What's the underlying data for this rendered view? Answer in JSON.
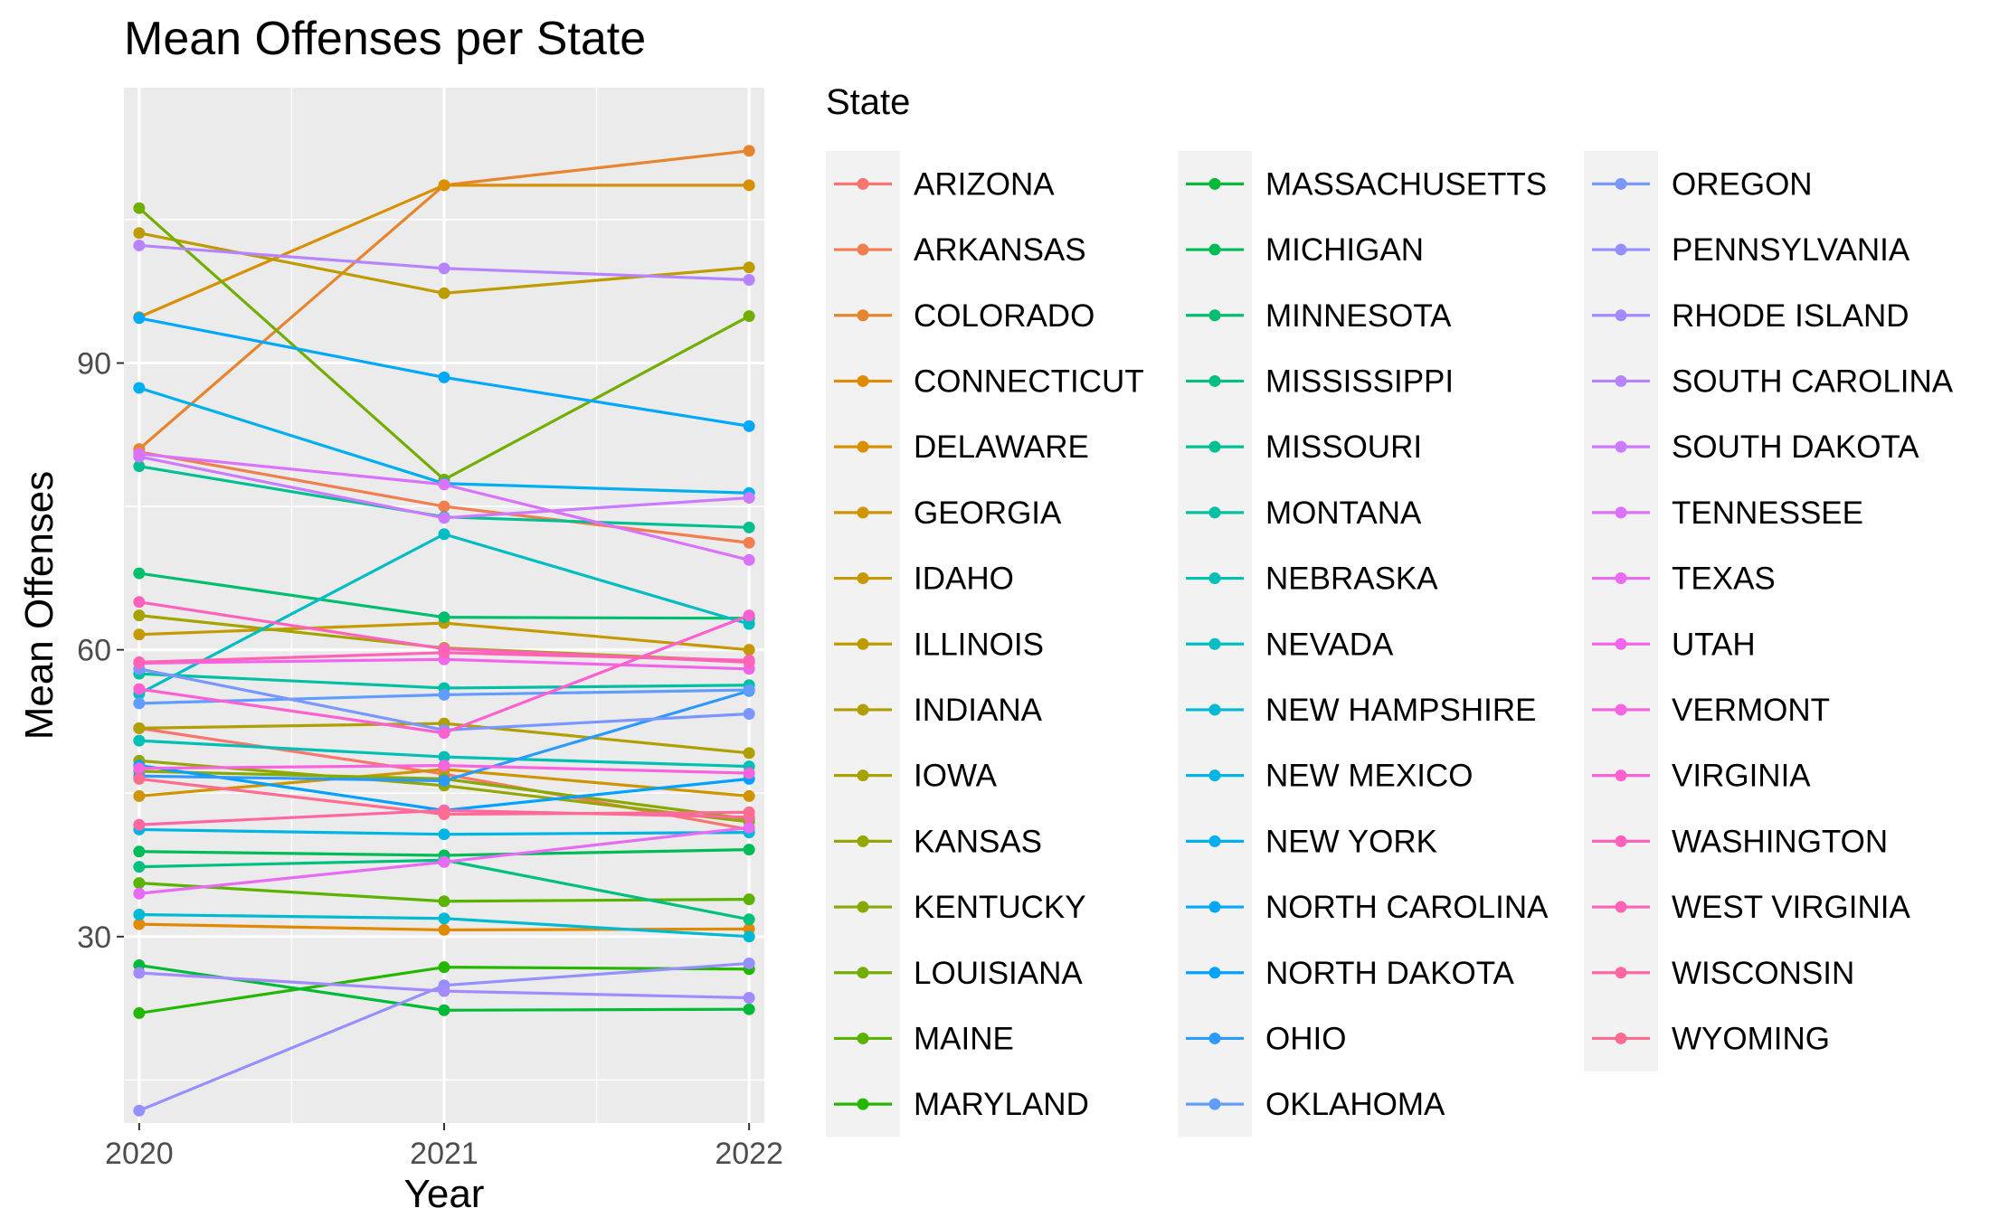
{
  "chart_data": {
    "type": "line",
    "title": "Mean Offenses per State",
    "xlabel": "Year",
    "ylabel": "Mean Offenses",
    "x": [
      2020,
      2021,
      2022
    ],
    "x_tick_labels": [
      "2020",
      "2021",
      "2022"
    ],
    "y_ticks": [
      30,
      60,
      90
    ],
    "y_tick_labels": [
      "30",
      "60",
      "90"
    ],
    "xlim": [
      2019.95,
      2022.05
    ],
    "ylim": [
      10.5,
      118.8
    ],
    "grid": true,
    "legend": {
      "title": "State",
      "position": "right",
      "columns": 3
    },
    "series": [
      {
        "name": "ARIZONA",
        "color": "#F8766D",
        "values": [
          51.8,
          47.0,
          41.2
        ]
      },
      {
        "name": "ARKANSAS",
        "color": "#F07E4E",
        "values": [
          80.7,
          75.0,
          71.2
        ]
      },
      {
        "name": "COLORADO",
        "color": "#E7852E",
        "values": [
          81.0,
          108.6,
          112.2
        ]
      },
      {
        "name": "CONNECTICUT",
        "color": "#E18A00",
        "values": [
          31.3,
          30.7,
          30.8
        ]
      },
      {
        "name": "DELAWARE",
        "color": "#D89000",
        "values": [
          94.8,
          108.6,
          108.6
        ]
      },
      {
        "name": "GEORGIA",
        "color": "#CF9400",
        "values": [
          44.7,
          47.5,
          44.7
        ]
      },
      {
        "name": "IDAHO",
        "color": "#C49A00",
        "values": [
          61.6,
          62.8,
          60.0
        ]
      },
      {
        "name": "ILLINOIS",
        "color": "#BE9C00",
        "values": [
          103.6,
          97.3,
          100.0
        ]
      },
      {
        "name": "INDIANA",
        "color": "#B09F00",
        "values": [
          51.8,
          52.3,
          49.2
        ]
      },
      {
        "name": "IOWA",
        "color": "#A5A300",
        "values": [
          63.6,
          60.2,
          58.8
        ]
      },
      {
        "name": "KANSAS",
        "color": "#96A600",
        "values": [
          48.4,
          45.8,
          42.0
        ]
      },
      {
        "name": "KENTUCKY",
        "color": "#87AA00",
        "values": [
          47.3,
          46.5,
          42.3
        ]
      },
      {
        "name": "LOUISIANA",
        "color": "#72AE00",
        "values": [
          106.2,
          77.8,
          94.9
        ]
      },
      {
        "name": "MAINE",
        "color": "#5BB300",
        "values": [
          35.6,
          33.7,
          33.9
        ]
      },
      {
        "name": "MARYLAND",
        "color": "#24B700",
        "values": [
          22.0,
          26.8,
          26.6
        ]
      },
      {
        "name": "MASSACHUSETTS",
        "color": "#00BA38",
        "values": [
          27.0,
          22.3,
          22.4
        ]
      },
      {
        "name": "MICHIGAN",
        "color": "#00BC56",
        "values": [
          38.9,
          38.5,
          39.1
        ]
      },
      {
        "name": "MINNESOTA",
        "color": "#00BE6C",
        "values": [
          68.0,
          63.4,
          63.3
        ]
      },
      {
        "name": "MISSISSIPPI",
        "color": "#00C07F",
        "values": [
          37.3,
          38.0,
          31.8
        ]
      },
      {
        "name": "MISSOURI",
        "color": "#00C091",
        "values": [
          79.2,
          73.9,
          72.8
        ]
      },
      {
        "name": "MONTANA",
        "color": "#00C0A3",
        "values": [
          57.5,
          56.0,
          56.3
        ]
      },
      {
        "name": "NEBRASKA",
        "color": "#00BFB4",
        "values": [
          50.5,
          48.8,
          47.8
        ]
      },
      {
        "name": "NEVADA",
        "color": "#00BDC4",
        "values": [
          55.4,
          72.1,
          62.7
        ]
      },
      {
        "name": "NEW HAMPSHIRE",
        "color": "#00BAD3",
        "values": [
          32.3,
          31.9,
          30.0
        ]
      },
      {
        "name": "NEW MEXICO",
        "color": "#00B5E2",
        "values": [
          41.2,
          40.7,
          40.9
        ]
      },
      {
        "name": "NEW YORK",
        "color": "#00AFEE",
        "values": [
          87.4,
          77.4,
          76.4
        ]
      },
      {
        "name": "NORTH CAROLINA",
        "color": "#00A8F9",
        "values": [
          94.7,
          88.5,
          83.4
        ]
      },
      {
        "name": "NORTH DAKOTA",
        "color": "#00A1FF",
        "values": [
          47.9,
          43.2,
          46.5
        ]
      },
      {
        "name": "OHIO",
        "color": "#2C99FF",
        "values": [
          46.8,
          46.3,
          55.7
        ]
      },
      {
        "name": "OKLAHOMA",
        "color": "#619CFF",
        "values": [
          54.4,
          55.3,
          55.8
        ]
      },
      {
        "name": "OREGON",
        "color": "#7A96FF",
        "values": [
          58.0,
          51.6,
          53.3
        ]
      },
      {
        "name": "PENNSYLVANIA",
        "color": "#9590FF",
        "values": [
          11.8,
          24.9,
          27.2
        ]
      },
      {
        "name": "RHODE ISLAND",
        "color": "#A48AFF",
        "values": [
          26.2,
          24.3,
          23.6
        ]
      },
      {
        "name": "SOUTH CAROLINA",
        "color": "#B883FF",
        "values": [
          102.3,
          99.9,
          98.7
        ]
      },
      {
        "name": "SOUTH DAKOTA",
        "color": "#CC7AFF",
        "values": [
          80.2,
          73.8,
          75.9
        ]
      },
      {
        "name": "TENNESSEE",
        "color": "#DB72FB",
        "values": [
          80.5,
          77.3,
          69.4
        ]
      },
      {
        "name": "TEXAS",
        "color": "#E76BF3",
        "values": [
          34.5,
          37.8,
          41.4
        ]
      },
      {
        "name": "UTAH",
        "color": "#F066EA",
        "values": [
          58.6,
          59.0,
          58.0
        ]
      },
      {
        "name": "VERMONT",
        "color": "#F863DF",
        "values": [
          47.6,
          47.9,
          47.1
        ]
      },
      {
        "name": "VIRGINIA",
        "color": "#FD61D1",
        "values": [
          55.9,
          51.3,
          63.6
        ]
      },
      {
        "name": "WASHINGTON",
        "color": "#FF62BC",
        "values": [
          65.0,
          60.1,
          58.7
        ]
      },
      {
        "name": "WEST VIRGINIA",
        "color": "#FF63B6",
        "values": [
          58.7,
          59.7,
          58.9
        ]
      },
      {
        "name": "WISCONSIN",
        "color": "#FF67A4",
        "values": [
          41.7,
          43.2,
          42.5
        ]
      },
      {
        "name": "WYOMING",
        "color": "#FF6C91",
        "values": [
          46.5,
          42.8,
          43.0
        ]
      }
    ]
  }
}
